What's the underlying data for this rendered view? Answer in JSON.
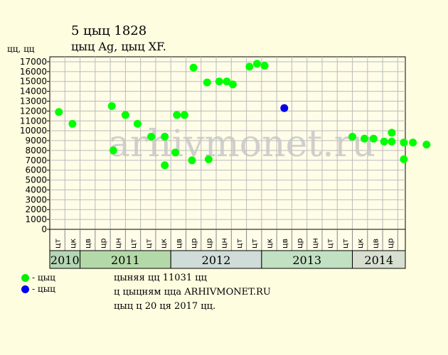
{
  "header": {
    "title_line1": "5  цыц 1828",
    "title_line2": "цыц Ag, цыц XF."
  },
  "chart_data": {
    "type": "scatter",
    "ylabel": "цц, цц",
    "ylim": [
      0,
      17500
    ],
    "yticks": [
      0,
      1000,
      2000,
      3000,
      4000,
      5000,
      6000,
      7000,
      8000,
      9000,
      10000,
      11000,
      12000,
      13000,
      14000,
      15000,
      16000,
      17000
    ],
    "grid": true,
    "watermark": "arhivmonet.ru",
    "months": [
      "цт",
      "цк",
      "цв",
      "цр",
      "цн",
      "цт",
      "цт",
      "цк",
      "цв",
      "цр",
      "цр",
      "цн",
      "цт",
      "цт",
      "цк",
      "цв",
      "цр",
      "цн",
      "цт",
      "цт",
      "цк",
      "цв",
      "цр"
    ],
    "years": [
      {
        "label": "2010",
        "span": 2,
        "color": "#b5d6b5"
      },
      {
        "label": "2011",
        "span": 6,
        "color": "#b3d9a8"
      },
      {
        "label": "2012",
        "span": 6,
        "color": "#cfdcd8"
      },
      {
        "label": "2013",
        "span": 6,
        "color": "#c2e0c2"
      },
      {
        "label": "2014",
        "span": 2,
        "color": "#d6dfd0"
      }
    ],
    "series": [
      {
        "color": "#00ff00",
        "points": [
          [
            0.1,
            11900
          ],
          [
            1.0,
            10700
          ],
          [
            3.6,
            12500
          ],
          [
            3.7,
            8000
          ],
          [
            4.5,
            11600
          ],
          [
            5.3,
            10700
          ],
          [
            6.2,
            9400
          ],
          [
            7.1,
            9400
          ],
          [
            7.1,
            6500
          ],
          [
            7.8,
            7800
          ],
          [
            7.9,
            11600
          ],
          [
            8.4,
            11600
          ],
          [
            8.9,
            7000
          ],
          [
            9.0,
            16400
          ],
          [
            9.9,
            14900
          ],
          [
            10.0,
            7100
          ],
          [
            10.7,
            15000
          ],
          [
            11.2,
            15000
          ],
          [
            11.6,
            14700
          ],
          [
            12.7,
            16500
          ],
          [
            13.2,
            16800
          ],
          [
            13.7,
            16600
          ],
          [
            19.5,
            9400
          ],
          [
            20.3,
            9200
          ],
          [
            20.9,
            9200
          ],
          [
            21.6,
            8900
          ],
          [
            22.1,
            8900
          ],
          [
            22.1,
            9800
          ],
          [
            22.9,
            8800
          ],
          [
            22.9,
            7100
          ],
          [
            23.5,
            8800
          ],
          [
            24.4,
            8600
          ]
        ]
      },
      {
        "color": "#0000ee",
        "points": [
          [
            15.0,
            12300
          ]
        ]
      }
    ]
  },
  "legend": [
    {
      "label": "- цыц",
      "color": "#00ee00"
    },
    {
      "label": "- цыц",
      "color": "#0000ee"
    }
  ],
  "notes": [
    "цыняя цц 11031 цц",
    "ц цыцням цца ARHIVMONET.RU",
    "цыц ц 20 ця 2017 цц."
  ]
}
